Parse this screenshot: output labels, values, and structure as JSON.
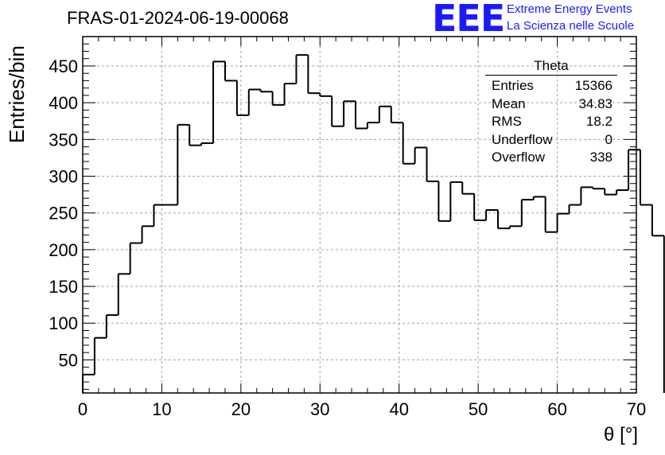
{
  "header": {
    "title": "FRAS-01-2024-06-19-00068",
    "logo_text": "EEE",
    "logo_line1": "Extreme Energy Events",
    "logo_line2": "La Scienza nelle Scuole"
  },
  "stats_box": {
    "title": "Theta",
    "rows": [
      {
        "label": "Entries",
        "value": "15366"
      },
      {
        "label": "Mean",
        "value": "34.83"
      },
      {
        "label": "RMS",
        "value": "18.2"
      },
      {
        "label": "Underflow",
        "value": "0"
      },
      {
        "label": "Overflow",
        "value": "338"
      }
    ]
  },
  "chart_data": {
    "type": "histogram",
    "title": "FRAS-01-2024-06-19-00068",
    "xlabel": "θ [°]",
    "ylabel": "Entries/bin",
    "xlim": [
      0,
      70
    ],
    "ylim": [
      5,
      490
    ],
    "x_ticks": [
      0,
      10,
      20,
      30,
      40,
      50,
      60,
      70
    ],
    "y_ticks": [
      50,
      100,
      150,
      200,
      250,
      300,
      350,
      400,
      450
    ],
    "grid": true,
    "bin_width": 1.5,
    "x_start": 0,
    "values": [
      30,
      80,
      111,
      167,
      209,
      232,
      261,
      261,
      370,
      342,
      345,
      456,
      430,
      383,
      418,
      415,
      397,
      426,
      465,
      413,
      409,
      368,
      402,
      365,
      373,
      395,
      373,
      317,
      339,
      293,
      239,
      292,
      276,
      240,
      254,
      229,
      232,
      268,
      272,
      224,
      249,
      261,
      285,
      283,
      275,
      281,
      336,
      261,
      219
    ],
    "line_color": "#000000",
    "grid_color": "#a0a0a0"
  }
}
